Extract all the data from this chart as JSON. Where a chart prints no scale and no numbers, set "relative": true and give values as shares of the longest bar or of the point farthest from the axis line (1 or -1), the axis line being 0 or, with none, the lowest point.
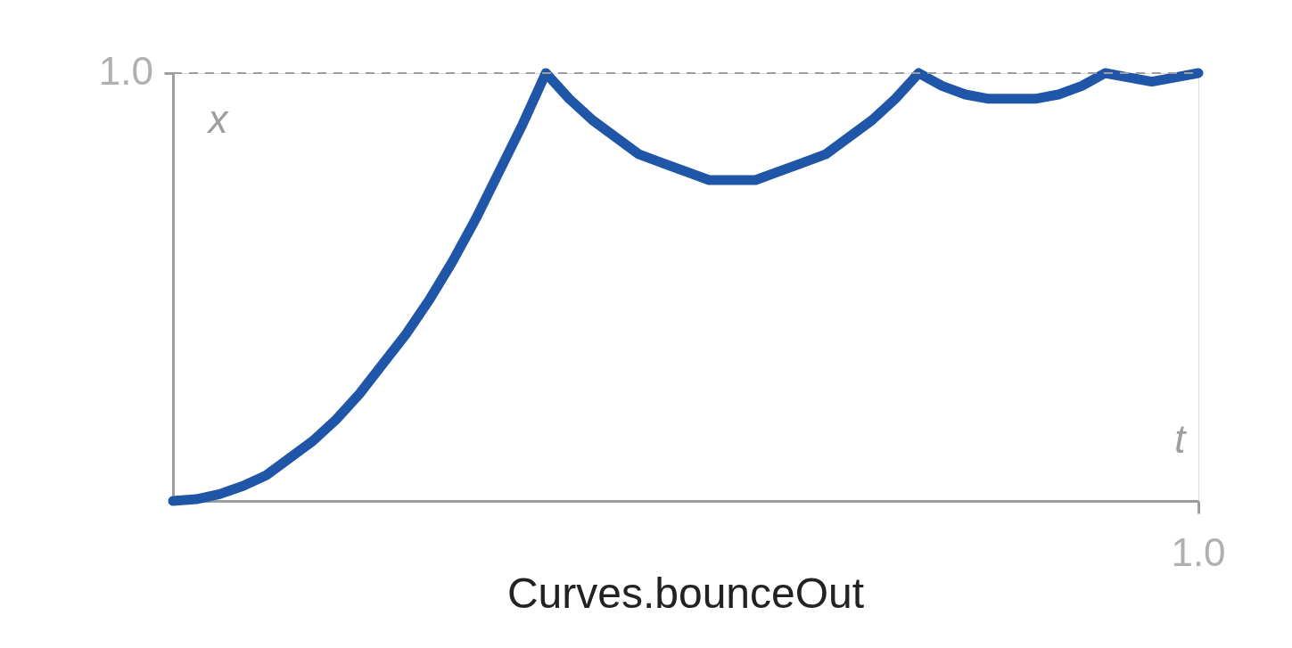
{
  "chart_data": {
    "type": "line",
    "title": "Curves.bounceOut",
    "xlabel": "t",
    "ylabel": "x",
    "relative": true,
    "categories": [
      null,
      null,
      null,
      null,
      null,
      null,
      null,
      null,
      null,
      null,
      null,
      null,
      null,
      null,
      null,
      null,
      null,
      null,
      null,
      null,
      null,
      null,
      null,
      null,
      null,
      null,
      null,
      null,
      null,
      null,
      null,
      null,
      null,
      null,
      null,
      null,
      null,
      null,
      null,
      null,
      null,
      null,
      null,
      null,
      null
    ],
    "series": [
      {
        "color": "#1f56a8",
        "values": [
          0,
          0.004,
          0.016,
          0.035,
          0.06,
          0.1,
          0.14,
          0.19,
          0.25,
          0.32,
          0.39,
          0.47,
          0.56,
          0.66,
          0.77,
          0.88,
          1.0,
          0.94,
          0.89,
          0.85,
          0.81,
          0.79,
          0.77,
          0.75,
          0.75,
          0.75,
          0.77,
          0.79,
          0.81,
          0.85,
          0.89,
          0.94,
          1.0,
          0.97,
          0.95,
          0.94,
          0.94,
          0.94,
          0.95,
          0.97,
          1.0,
          0.99,
          0.98,
          0.99,
          1.0
        ]
      }
    ],
    "annotations": [
      "1.0",
      "1.0"
    ],
    "ref_lines": [
      {
        "axis": "y",
        "value": 1,
        "color": "#9e9e9e",
        "line_style": "dashed"
      }
    ],
    "marker": "none",
    "line_style": "solid"
  }
}
